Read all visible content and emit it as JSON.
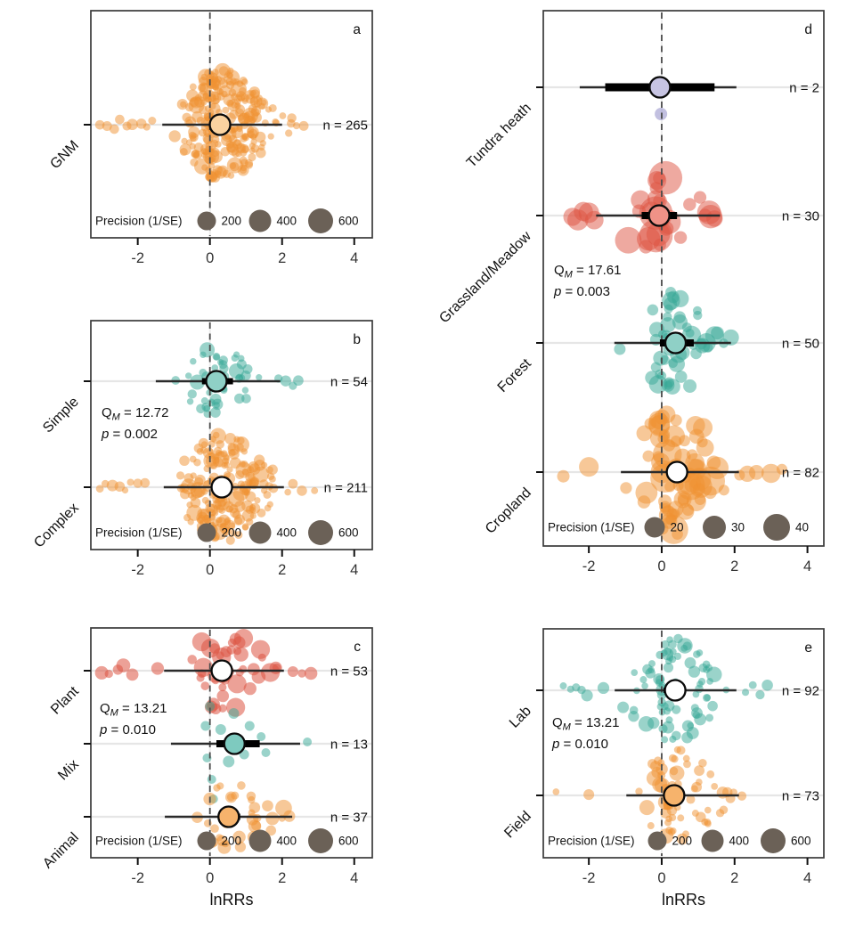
{
  "figure": {
    "axis_label": "lnRRs",
    "colors": {
      "orange": "#ef9232",
      "teal": "#35a796",
      "red": "#dd5442",
      "lavender": "#9a96cc",
      "legend_gray": "#6b6157",
      "interval_line": "#2b2b2b",
      "ci_bar": "#000000",
      "dashed_zero_line": "#4d4d4d",
      "row_guide": "#e6e6e6",
      "panel_border": "#3a3a3a",
      "text": "#111111",
      "tick_text": "#333333"
    }
  },
  "chart_data": [
    {
      "id": "a",
      "letter": "a",
      "type": "scatter-orchard-beeswarm",
      "xlim": [
        -3.3,
        4.5
      ],
      "x_ticks": [
        -2,
        0,
        2,
        4
      ],
      "show_xlabel": false,
      "grid": "row-guides + dashed zero line",
      "precision_legend": {
        "label": "Precision (1/SE)",
        "values": [
          "200",
          "400",
          "600"
        ],
        "radii": [
          10.5,
          12.5,
          14
        ]
      },
      "qm": null,
      "groups": [
        {
          "label": "GNM",
          "n_label": "n = 265",
          "n": 265,
          "estimate": 0.28,
          "ci": [
            0.12,
            0.45
          ],
          "pi": [
            -1.32,
            2.0
          ],
          "color": "#ef9232",
          "opacity": 0.5,
          "mean_fill": "#fad2a0",
          "ci_height": 7,
          "cloud": {
            "center": 0.35,
            "sd": 0.55,
            "spread": 60,
            "seed": 11,
            "r_min": 3.6,
            "r_max": 7.2
          },
          "outliers": [
            -3.05,
            -2.85,
            -2.65,
            -2.5,
            -2.3,
            -2.15,
            -1.9,
            -1.75,
            -1.6,
            2.25,
            2.4,
            2.6
          ]
        }
      ]
    },
    {
      "id": "b",
      "letter": "b",
      "type": "scatter-orchard-beeswarm",
      "xlim": [
        -3.3,
        4.5
      ],
      "x_ticks": [
        -2,
        0,
        2,
        4
      ],
      "show_xlabel": false,
      "precision_legend": {
        "label": "Precision (1/SE)",
        "values": [
          "200",
          "400",
          "600"
        ],
        "radii": [
          10.5,
          12.5,
          14
        ]
      },
      "qm": {
        "stat": "Q",
        "sub": "M",
        "q_value": "12.72",
        "p_label": "p",
        "p_value": "0.002"
      },
      "groups": [
        {
          "label": "Simple",
          "n_label": "n = 54",
          "n": 54,
          "estimate": 0.18,
          "ci": [
            -0.22,
            0.64
          ],
          "pi": [
            -1.5,
            1.95
          ],
          "color": "#35a796",
          "opacity": 0.5,
          "mean_fill": "#8fd0c6",
          "ci_height": 7,
          "cloud": {
            "center": 0.2,
            "sd": 0.42,
            "spread": 36,
            "seed": 21,
            "r_min": 3.6,
            "r_max": 6.8
          },
          "outliers": [
            -0.95,
            1.9,
            2.1,
            2.3,
            2.45
          ]
        },
        {
          "label": "Complex",
          "n_label": "n = 211",
          "n": 211,
          "estimate": 0.33,
          "ci": [
            0.16,
            0.5
          ],
          "pi": [
            -1.28,
            2.05
          ],
          "color": "#ef9232",
          "opacity": 0.5,
          "mean_fill": "#ffffff",
          "ci_height": 7,
          "cloud": {
            "center": 0.35,
            "sd": 0.55,
            "spread": 58,
            "seed": 22,
            "r_min": 3.6,
            "r_max": 7.2
          },
          "outliers": [
            -3.05,
            -2.9,
            -2.7,
            -2.5,
            -2.35,
            -2.2,
            -2.0,
            -1.8,
            2.3,
            2.55,
            2.9
          ]
        }
      ]
    },
    {
      "id": "c",
      "letter": "c",
      "type": "scatter-orchard-beeswarm",
      "xlim": [
        -3.3,
        4.5
      ],
      "x_ticks": [
        -2,
        0,
        2,
        4
      ],
      "show_xlabel": true,
      "precision_legend": {
        "label": "Precision (1/SE)",
        "values": [
          "200",
          "400",
          "600"
        ],
        "radii": [
          10.5,
          12.5,
          14
        ]
      },
      "qm": {
        "stat": "Q",
        "sub": "M",
        "q_value": "13.21",
        "p_label": "p",
        "p_value": "0.010"
      },
      "groups": [
        {
          "label": "Plant",
          "n_label": "n = 53",
          "n": 53,
          "estimate": 0.33,
          "ci": [
            0.15,
            0.52
          ],
          "pi": [
            -1.27,
            2.05
          ],
          "color": "#dd5442",
          "opacity": 0.55,
          "mean_fill": "#ffffff",
          "ci_height": 7,
          "cloud": {
            "center": 0.4,
            "sd": 0.52,
            "spread": 42,
            "seed": 31,
            "r_min": 4.5,
            "r_max": 8.5
          },
          "outliers": [
            -3.0,
            -2.8,
            -2.55,
            -2.4,
            -2.15,
            -1.45,
            2.3,
            2.55,
            2.8
          ]
        },
        {
          "label": "Mix",
          "n_label": "n = 13",
          "n": 13,
          "estimate": 0.68,
          "ci": [
            0.18,
            1.38
          ],
          "pi": [
            -1.08,
            2.5
          ],
          "color": "#35a796",
          "opacity": 0.5,
          "mean_fill": "#7ecabf",
          "ci_height": 8,
          "fixed": [
            {
              "x": -0.12,
              "dy": -20,
              "r": 5.5
            },
            {
              "x": -0.08,
              "dy": 16,
              "r": 5
            },
            {
              "x": 0.0,
              "dy": -42,
              "r": 5.5
            },
            {
              "x": 0.05,
              "dy": 40,
              "r": 5
            },
            {
              "x": 0.1,
              "dy": 62,
              "r": 5
            },
            {
              "x": 0.3,
              "dy": -16,
              "r": 6
            },
            {
              "x": 0.52,
              "dy": 20,
              "r": 6.5
            },
            {
              "x": 0.66,
              "dy": -34,
              "r": 6
            },
            {
              "x": 0.95,
              "dy": 12,
              "r": 5.5
            },
            {
              "x": 1.1,
              "dy": -20,
              "r": 5.5
            },
            {
              "x": 1.42,
              "dy": -8,
              "r": 5
            },
            {
              "x": 1.55,
              "dy": 10,
              "r": 5
            },
            {
              "x": 2.7,
              "dy": -2,
              "r": 5
            }
          ]
        },
        {
          "label": "Animal",
          "n_label": "n = 37",
          "n": 37,
          "estimate": 0.52,
          "ci": [
            0.27,
            0.84
          ],
          "pi": [
            -1.25,
            2.28
          ],
          "color": "#ef9232",
          "opacity": 0.5,
          "mean_fill": "#f6b36c",
          "ci_height": 7,
          "cloud": {
            "center": 0.62,
            "sd": 0.48,
            "spread": 34,
            "seed": 33,
            "r_min": 4.0,
            "r_max": 7.5
          },
          "outliers": [
            -0.35,
            2.0,
            2.2
          ]
        }
      ]
    },
    {
      "id": "d",
      "letter": "d",
      "type": "scatter-orchard-beeswarm",
      "xlim": [
        -3.25,
        4.45
      ],
      "x_ticks": [
        -2,
        0,
        2,
        4
      ],
      "show_xlabel": false,
      "precision_legend": {
        "label": "Precision (1/SE)",
        "values": [
          "20",
          "30",
          "40"
        ],
        "radii": [
          11.5,
          13,
          15
        ]
      },
      "qm": {
        "stat": "Q",
        "sub": "M",
        "q_value": "17.61",
        "p_label": "p",
        "p_value": "0.003"
      },
      "groups": [
        {
          "label": "Tundra heath",
          "n_label": "n = 2",
          "n": 2,
          "estimate": -0.05,
          "ci": [
            -1.55,
            1.45
          ],
          "pi": [
            -2.25,
            2.05
          ],
          "color": "#9a96cc",
          "opacity": 0.6,
          "mean_fill": "#c7c4e2",
          "ci_height": 9,
          "fixed": [
            {
              "x": -0.05,
              "dy": 0,
              "r": 7
            },
            {
              "x": -0.02,
              "dy": 30,
              "r": 7
            }
          ]
        },
        {
          "label": "Grassland/Meadow",
          "n_label": "n = 30",
          "n": 30,
          "estimate": -0.07,
          "ci": [
            -0.55,
            0.42
          ],
          "pi": [
            -1.8,
            1.6
          ],
          "color": "#dd5442",
          "opacity": 0.5,
          "mean_fill": "#ef9287",
          "ci_height": 8,
          "cloud": {
            "center": -0.05,
            "sd": 0.5,
            "spread": 44,
            "seed": 42,
            "r_min": 7,
            "r_max": 15
          },
          "outliers": [
            -2.45,
            -2.3,
            -2.15,
            -2.0,
            -1.85,
            1.3,
            1.45
          ]
        },
        {
          "label": "Forest",
          "n_label": "n = 50",
          "n": 50,
          "estimate": 0.38,
          "ci": [
            -0.05,
            0.88
          ],
          "pi": [
            -1.3,
            1.9
          ],
          "color": "#35a796",
          "opacity": 0.5,
          "mean_fill": "#8fd0c6",
          "ci_height": 8,
          "cloud": {
            "center": 0.35,
            "sd": 0.42,
            "spread": 55,
            "seed": 43,
            "r_min": 5,
            "r_max": 11
          },
          "outliers": [
            -1.15,
            1.7,
            1.9
          ]
        },
        {
          "label": "Cropland",
          "n_label": "n = 82",
          "n": 82,
          "estimate": 0.42,
          "ci": [
            0.26,
            0.6
          ],
          "pi": [
            -1.12,
            2.12
          ],
          "color": "#ef9232",
          "opacity": 0.5,
          "mean_fill": "#ffffff",
          "ci_height": 7,
          "cloud": {
            "center": 0.35,
            "sd": 0.58,
            "spread": 66,
            "seed": 44,
            "r_min": 6,
            "r_max": 13
          },
          "outliers": [
            -2.7,
            -2.0,
            2.35,
            2.6,
            3.0,
            3.3
          ]
        }
      ]
    },
    {
      "id": "e",
      "letter": "e",
      "type": "scatter-orchard-beeswarm",
      "xlim": [
        -3.25,
        4.45
      ],
      "x_ticks": [
        -2,
        0,
        2,
        4
      ],
      "show_xlabel": true,
      "precision_legend": {
        "label": "Precision (1/SE)",
        "values": [
          "200",
          "400",
          "600"
        ],
        "radii": [
          10.5,
          12.5,
          14
        ]
      },
      "qm": {
        "stat": "Q",
        "sub": "M",
        "q_value": "13.21",
        "p_label": "p",
        "p_value": "0.010"
      },
      "groups": [
        {
          "label": "Lab",
          "n_label": "n = 92",
          "n": 92,
          "estimate": 0.37,
          "ci": [
            0.05,
            0.6
          ],
          "pi": [
            -1.29,
            2.05
          ],
          "color": "#35a796",
          "opacity": 0.5,
          "mean_fill": "#ffffff",
          "ci_height": 6,
          "cloud": {
            "center": 0.3,
            "sd": 0.55,
            "spread": 55,
            "seed": 51,
            "r_min": 3.8,
            "r_max": 7
          },
          "outliers": [
            -2.7,
            -2.5,
            -2.35,
            -2.2,
            -2.05,
            -1.6,
            2.3,
            2.5,
            2.7,
            2.9
          ]
        },
        {
          "label": "Field",
          "n_label": "n = 73",
          "n": 73,
          "estimate": 0.34,
          "ci": [
            0.12,
            0.55
          ],
          "pi": [
            -0.97,
            2.12
          ],
          "color": "#ef9232",
          "opacity": 0.5,
          "mean_fill": "#f6b36c",
          "ci_height": 7,
          "cloud": {
            "center": 0.45,
            "sd": 0.5,
            "spread": 48,
            "seed": 52,
            "r_min": 3.8,
            "r_max": 6.8
          },
          "outliers": [
            -2.9,
            -2.0,
            2.2
          ]
        }
      ]
    }
  ]
}
